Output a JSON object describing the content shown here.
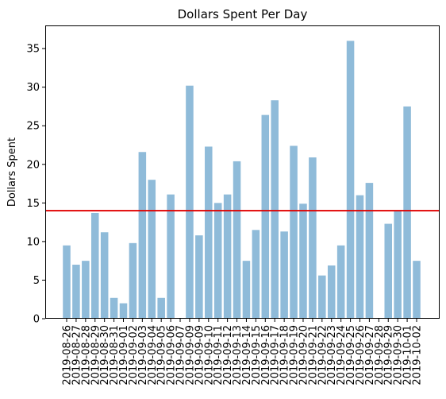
{
  "chart_data": {
    "type": "bar",
    "title": "Dollars Spent Per Day",
    "xlabel": "",
    "ylabel": "Dollars Spent",
    "ylim": [
      0,
      38
    ],
    "yticks": [
      0,
      5,
      10,
      15,
      20,
      25,
      30,
      35
    ],
    "categories": [
      "2019-08-26",
      "2019-08-27",
      "2019-08-28",
      "2019-08-29",
      "2019-08-30",
      "2019-08-31",
      "2019-09-01",
      "2019-09-02",
      "2019-09-03",
      "2019-09-04",
      "2019-09-05",
      "2019-09-06",
      "2019-09-07",
      "2019-09-09",
      "2019-09-09",
      "2019-09-10",
      "2019-09-11",
      "2019-09-12",
      "2019-09-13",
      "2019-09-14",
      "2019-09-15",
      "2019-09-16",
      "2019-09-17",
      "2019-09-18",
      "2019-09-19",
      "2019-09-20",
      "2019-09-21",
      "2019-09-22",
      "2019-09-23",
      "2019-09-24",
      "2019-09-25",
      "2019-09-26",
      "2019-09-27",
      "2019-09-28",
      "2019-09-29",
      "2019-09-30",
      "2019-10-01",
      "2019-10-02"
    ],
    "values": [
      9.5,
      7.0,
      7.5,
      13.7,
      11.2,
      2.7,
      2.0,
      9.8,
      21.6,
      18.0,
      2.7,
      16.1,
      0,
      30.2,
      10.8,
      22.3,
      15.0,
      16.1,
      20.4,
      7.5,
      11.5,
      26.4,
      28.3,
      11.3,
      22.4,
      14.9,
      20.9,
      5.6,
      6.9,
      9.5,
      36.0,
      16.0,
      17.6,
      0,
      12.3,
      14.0,
      27.5,
      7.5
    ],
    "reference_line": {
      "value": 14.0,
      "color": "#e00000"
    },
    "bar_color": "#8fbbd9",
    "grid": false,
    "legend": "none"
  }
}
